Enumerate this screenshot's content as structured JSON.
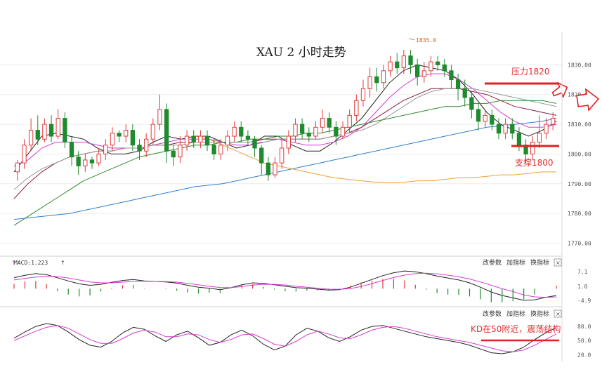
{
  "chart_data": {
    "type": "candlestick",
    "title": "XAU 2 小时走势",
    "price_axis": {
      "ticks": [
        1830,
        1820,
        1810,
        1800,
        1790,
        1780,
        1770
      ],
      "tick_labels": [
        "1830.00",
        "1820.00",
        "1810.00",
        "1800.00",
        "1790.00",
        "1780.00",
        "1770.00"
      ],
      "ylim": [
        1768,
        1840
      ]
    },
    "peak_label": "1835.0",
    "resistance": {
      "label": "压力1820",
      "value": 1820
    },
    "support": {
      "label": "支撑1800",
      "value": 1800
    },
    "colors": {
      "up": "#e03a3a",
      "down": "#1f8a2e",
      "annotation": "#e03030"
    },
    "candles": [
      [
        1794,
        1797,
        1791,
        1798
      ],
      [
        1797,
        1803,
        1795,
        1805
      ],
      [
        1803,
        1808,
        1801,
        1812
      ],
      [
        1808,
        1805,
        1803,
        1813
      ],
      [
        1805,
        1810,
        1804,
        1812
      ],
      [
        1810,
        1806,
        1804,
        1813
      ],
      [
        1806,
        1812,
        1805,
        1815
      ],
      [
        1812,
        1804,
        1802,
        1814
      ],
      [
        1804,
        1799,
        1796,
        1806
      ],
      [
        1799,
        1796,
        1793,
        1801
      ],
      [
        1796,
        1798,
        1794,
        1800
      ],
      [
        1798,
        1797,
        1795,
        1799
      ],
      [
        1797,
        1800,
        1796,
        1802
      ],
      [
        1800,
        1803,
        1798,
        1805
      ],
      [
        1803,
        1807,
        1801,
        1809
      ],
      [
        1807,
        1806,
        1804,
        1808
      ],
      [
        1806,
        1808,
        1804,
        1810
      ],
      [
        1808,
        1803,
        1801,
        1810
      ],
      [
        1803,
        1801,
        1798,
        1805
      ],
      [
        1801,
        1805,
        1799,
        1807
      ],
      [
        1805,
        1810,
        1803,
        1812
      ],
      [
        1810,
        1815,
        1808,
        1820
      ],
      [
        1815,
        1801,
        1797,
        1817
      ],
      [
        1801,
        1799,
        1796,
        1803
      ],
      [
        1799,
        1803,
        1797,
        1806
      ],
      [
        1803,
        1806,
        1801,
        1808
      ],
      [
        1806,
        1804,
        1802,
        1808
      ],
      [
        1804,
        1806,
        1802,
        1808
      ],
      [
        1806,
        1803,
        1801,
        1808
      ],
      [
        1803,
        1800,
        1798,
        1805
      ],
      [
        1800,
        1803,
        1798,
        1805
      ],
      [
        1803,
        1806,
        1801,
        1808
      ],
      [
        1806,
        1809,
        1804,
        1811
      ],
      [
        1809,
        1806,
        1804,
        1811
      ],
      [
        1806,
        1805,
        1803,
        1808
      ],
      [
        1805,
        1802,
        1799,
        1806
      ],
      [
        1802,
        1797,
        1793,
        1803
      ],
      [
        1797,
        1793,
        1791,
        1799
      ],
      [
        1793,
        1797,
        1792,
        1799
      ],
      [
        1797,
        1802,
        1795,
        1805
      ],
      [
        1802,
        1806,
        1800,
        1808
      ],
      [
        1806,
        1810,
        1804,
        1812
      ],
      [
        1810,
        1807,
        1805,
        1812
      ],
      [
        1807,
        1806,
        1804,
        1809
      ],
      [
        1806,
        1809,
        1805,
        1811
      ],
      [
        1809,
        1812,
        1807,
        1815
      ],
      [
        1812,
        1809,
        1807,
        1814
      ],
      [
        1809,
        1806,
        1803,
        1811
      ],
      [
        1806,
        1809,
        1805,
        1811
      ],
      [
        1809,
        1813,
        1807,
        1815
      ],
      [
        1813,
        1818,
        1811,
        1820
      ],
      [
        1818,
        1822,
        1816,
        1825
      ],
      [
        1822,
        1826,
        1819,
        1829
      ],
      [
        1826,
        1824,
        1821,
        1829
      ],
      [
        1824,
        1828,
        1822,
        1830
      ],
      [
        1828,
        1831,
        1826,
        1833
      ],
      [
        1831,
        1829,
        1827,
        1834
      ],
      [
        1829,
        1833,
        1827,
        1835
      ],
      [
        1833,
        1830,
        1827,
        1835
      ],
      [
        1830,
        1826,
        1823,
        1832
      ],
      [
        1826,
        1828,
        1824,
        1831
      ],
      [
        1828,
        1831,
        1826,
        1833
      ],
      [
        1831,
        1830,
        1828,
        1833
      ],
      [
        1830,
        1828,
        1826,
        1832
      ],
      [
        1828,
        1825,
        1822,
        1830
      ],
      [
        1825,
        1822,
        1818,
        1827
      ],
      [
        1822,
        1819,
        1816,
        1825
      ],
      [
        1819,
        1815,
        1812,
        1821
      ],
      [
        1815,
        1811,
        1808,
        1817
      ],
      [
        1811,
        1813,
        1809,
        1815
      ],
      [
        1813,
        1810,
        1808,
        1815
      ],
      [
        1810,
        1807,
        1805,
        1812
      ],
      [
        1807,
        1810,
        1805,
        1812
      ],
      [
        1810,
        1807,
        1805,
        1812
      ],
      [
        1807,
        1803,
        1801,
        1809
      ],
      [
        1803,
        1800,
        1797,
        1805
      ],
      [
        1800,
        1804,
        1798,
        1806
      ],
      [
        1804,
        1807,
        1802,
        1813
      ],
      [
        1807,
        1810,
        1805,
        1812
      ],
      [
        1810,
        1812,
        1808,
        1814
      ]
    ],
    "moving_averages": [
      {
        "color": "#222222",
        "values": [
          1794,
          1800,
          1806,
          1807,
          1806,
          1805,
          1802,
          1800,
          1800,
          1801,
          1804,
          1806,
          1805,
          1806,
          1806,
          1804,
          1802,
          1803,
          1806,
          1806,
          1803,
          1801,
          1801,
          1804,
          1808,
          1812,
          1818,
          1824,
          1828,
          1830,
          1829,
          1828,
          1825,
          1820,
          1814,
          1810,
          1808,
          1806,
          1808,
          1811
        ]
      },
      {
        "color": "#d63ad6",
        "values": [
          1796,
          1798,
          1802,
          1804,
          1804,
          1804,
          1803,
          1802,
          1802,
          1802,
          1803,
          1804,
          1805,
          1805,
          1805,
          1804,
          1803,
          1803,
          1804,
          1805,
          1804,
          1803,
          1803,
          1804,
          1806,
          1809,
          1814,
          1819,
          1823,
          1826,
          1827,
          1827,
          1825,
          1822,
          1818,
          1814,
          1811,
          1809,
          1809,
          1810
        ]
      },
      {
        "color": "#8b1c3c",
        "values": [
          1785,
          1790,
          1794,
          1797,
          1799,
          1800,
          1801,
          1801,
          1802,
          1802,
          1803,
          1803,
          1804,
          1804,
          1804,
          1804,
          1804,
          1804,
          1805,
          1805,
          1805,
          1805,
          1805,
          1806,
          1807,
          1809,
          1812,
          1815,
          1818,
          1820,
          1822,
          1822,
          1822,
          1821,
          1820,
          1818,
          1816,
          1815,
          1814,
          1813
        ]
      },
      {
        "color": "#999999",
        "values": [
          1788,
          1792,
          1795,
          1797,
          1799,
          1800,
          1801,
          1801,
          1802,
          1802,
          1803,
          1803,
          1803,
          1804,
          1804,
          1804,
          1804,
          1804,
          1804,
          1805,
          1805,
          1805,
          1805,
          1806,
          1807,
          1808,
          1810,
          1813,
          1816,
          1819,
          1821,
          1822,
          1822,
          1822,
          1821,
          1820,
          1819,
          1818,
          1817,
          1816
        ]
      },
      {
        "color": "#2e8b2e",
        "values": [
          1776,
          1779,
          1782,
          1785,
          1788,
          1791,
          1793,
          1795,
          1797,
          1799,
          1800,
          1801,
          1802,
          1803,
          1803,
          1804,
          1804,
          1805,
          1805,
          1806,
          1806,
          1807,
          1807,
          1808,
          1809,
          1810,
          1811,
          1812,
          1813,
          1814,
          1815,
          1816,
          1816,
          1817,
          1817,
          1818,
          1818,
          1818,
          1818,
          1817
        ]
      },
      {
        "color": "#2f7fd0",
        "values": [
          1778,
          1778.5,
          1779,
          1779.5,
          1780,
          1781,
          1782,
          1783,
          1784,
          1785,
          1786,
          1787,
          1788,
          1789,
          1789.5,
          1790,
          1791,
          1792,
          1793,
          1794,
          1795,
          1796,
          1797,
          1798,
          1799,
          1800,
          1801,
          1802,
          1803,
          1804,
          1805,
          1806,
          1807,
          1808,
          1809,
          1809.5,
          1810,
          1810.5,
          1811,
          1812
        ]
      },
      {
        "color": "#f0a030",
        "values": [
          null,
          null,
          null,
          null,
          null,
          null,
          null,
          null,
          null,
          null,
          null,
          null,
          null,
          1806,
          1805,
          1803,
          1801,
          1799,
          1797,
          1796,
          1795,
          1794,
          1793,
          1792,
          1791.5,
          1791,
          1790.5,
          1790.5,
          1790.5,
          1791,
          1791,
          1791.5,
          1792,
          1792,
          1792.5,
          1793,
          1793,
          1793.5,
          1794,
          1794
        ]
      }
    ],
    "macd": {
      "label": "MACD:1.223",
      "ticks": [
        7.1,
        1.0,
        -4.9
      ],
      "tick_labels": [
        "7.1",
        "1.0",
        "-4.9"
      ],
      "ylim": [
        -6,
        8.5
      ],
      "dif": [
        4.5,
        5.5,
        6.2,
        5.8,
        4.5,
        3.2,
        2.0,
        1.4,
        1.8,
        2.6,
        3.4,
        3.8,
        3.2,
        3.0,
        2.8,
        2.3,
        1.4,
        0.6,
        0.2,
        -0.4,
        0.4,
        1.6,
        2.4,
        2.2,
        1.6,
        1.0,
        0.4,
        0.2,
        -0.2,
        -0.6,
        -0.4,
        0.6,
        2.2,
        3.8,
        5.4,
        6.6,
        7.3,
        7.0,
        6.2,
        5.2,
        4.4,
        3.6,
        2.4,
        0.6,
        -1.4,
        -2.8,
        -3.8,
        -4.8,
        -4.6,
        -3.6,
        -2.8
      ],
      "dea": [
        3.6,
        4.2,
        4.8,
        5.2,
        5.0,
        4.4,
        3.6,
        2.8,
        2.4,
        2.4,
        2.7,
        3.0,
        3.1,
        3.0,
        2.9,
        2.7,
        2.2,
        1.6,
        1.0,
        0.5,
        0.4,
        0.9,
        1.5,
        1.8,
        1.8,
        1.5,
        1.0,
        0.6,
        0.2,
        -0.2,
        -0.3,
        0.0,
        0.9,
        2.1,
        3.4,
        4.6,
        5.6,
        6.2,
        6.4,
        6.1,
        5.6,
        4.9,
        4.0,
        2.8,
        1.4,
        0.0,
        -1.2,
        -2.6,
        -3.4,
        -3.6,
        -3.4
      ],
      "hist": [
        2.0,
        3.0,
        3.2,
        1.8,
        -1.0,
        -2.4,
        -3.2,
        -2.8,
        -1.2,
        0.4,
        1.4,
        1.6,
        0.2,
        0.0,
        -0.2,
        -0.8,
        -1.6,
        -2.0,
        -1.6,
        -1.8,
        0.0,
        1.4,
        1.8,
        0.8,
        -0.4,
        -1.0,
        -1.2,
        -0.8,
        -0.8,
        -0.8,
        -0.2,
        1.2,
        2.6,
        3.4,
        4.0,
        4.0,
        3.4,
        1.6,
        -0.4,
        -1.8,
        -2.4,
        -2.6,
        -3.2,
        -4.4,
        -5.6,
        -5.6,
        -5.2,
        -4.4,
        -2.4,
        0.0,
        1.2
      ]
    },
    "kd": {
      "ticks": [
        80.0,
        50.0,
        20.0
      ],
      "tick_labels": [
        "80.0",
        "50.0",
        "20.0"
      ],
      "ylim": [
        10,
        95
      ],
      "annotation": "KD在50附近，震荡结构",
      "k": [
        55,
        68,
        80,
        86,
        82,
        68,
        52,
        40,
        36,
        48,
        66,
        78,
        74,
        60,
        48,
        62,
        70,
        56,
        40,
        46,
        62,
        72,
        60,
        42,
        30,
        38,
        62,
        76,
        70,
        56,
        48,
        58,
        72,
        80,
        82,
        76,
        70,
        64,
        58,
        54,
        50,
        46,
        40,
        32,
        24,
        22,
        26,
        36,
        52,
        66,
        78
      ],
      "d": [
        50,
        60,
        70,
        78,
        82,
        76,
        64,
        52,
        44,
        44,
        54,
        66,
        72,
        68,
        58,
        58,
        64,
        62,
        52,
        46,
        52,
        62,
        64,
        54,
        42,
        38,
        48,
        62,
        70,
        64,
        56,
        54,
        62,
        72,
        78,
        80,
        76,
        70,
        64,
        58,
        54,
        50,
        46,
        40,
        34,
        28,
        26,
        30,
        40,
        52,
        64
      ]
    }
  },
  "toolbar": {
    "macd_panel": {
      "change_params": "改参数",
      "add_indicator": "加指标",
      "swap_indicator": "换指标",
      "close": "×"
    },
    "kd_panel": {
      "change_params": "改参数",
      "add_indicator": "加指标",
      "swap_indicator": "换指标",
      "close": "×"
    }
  }
}
